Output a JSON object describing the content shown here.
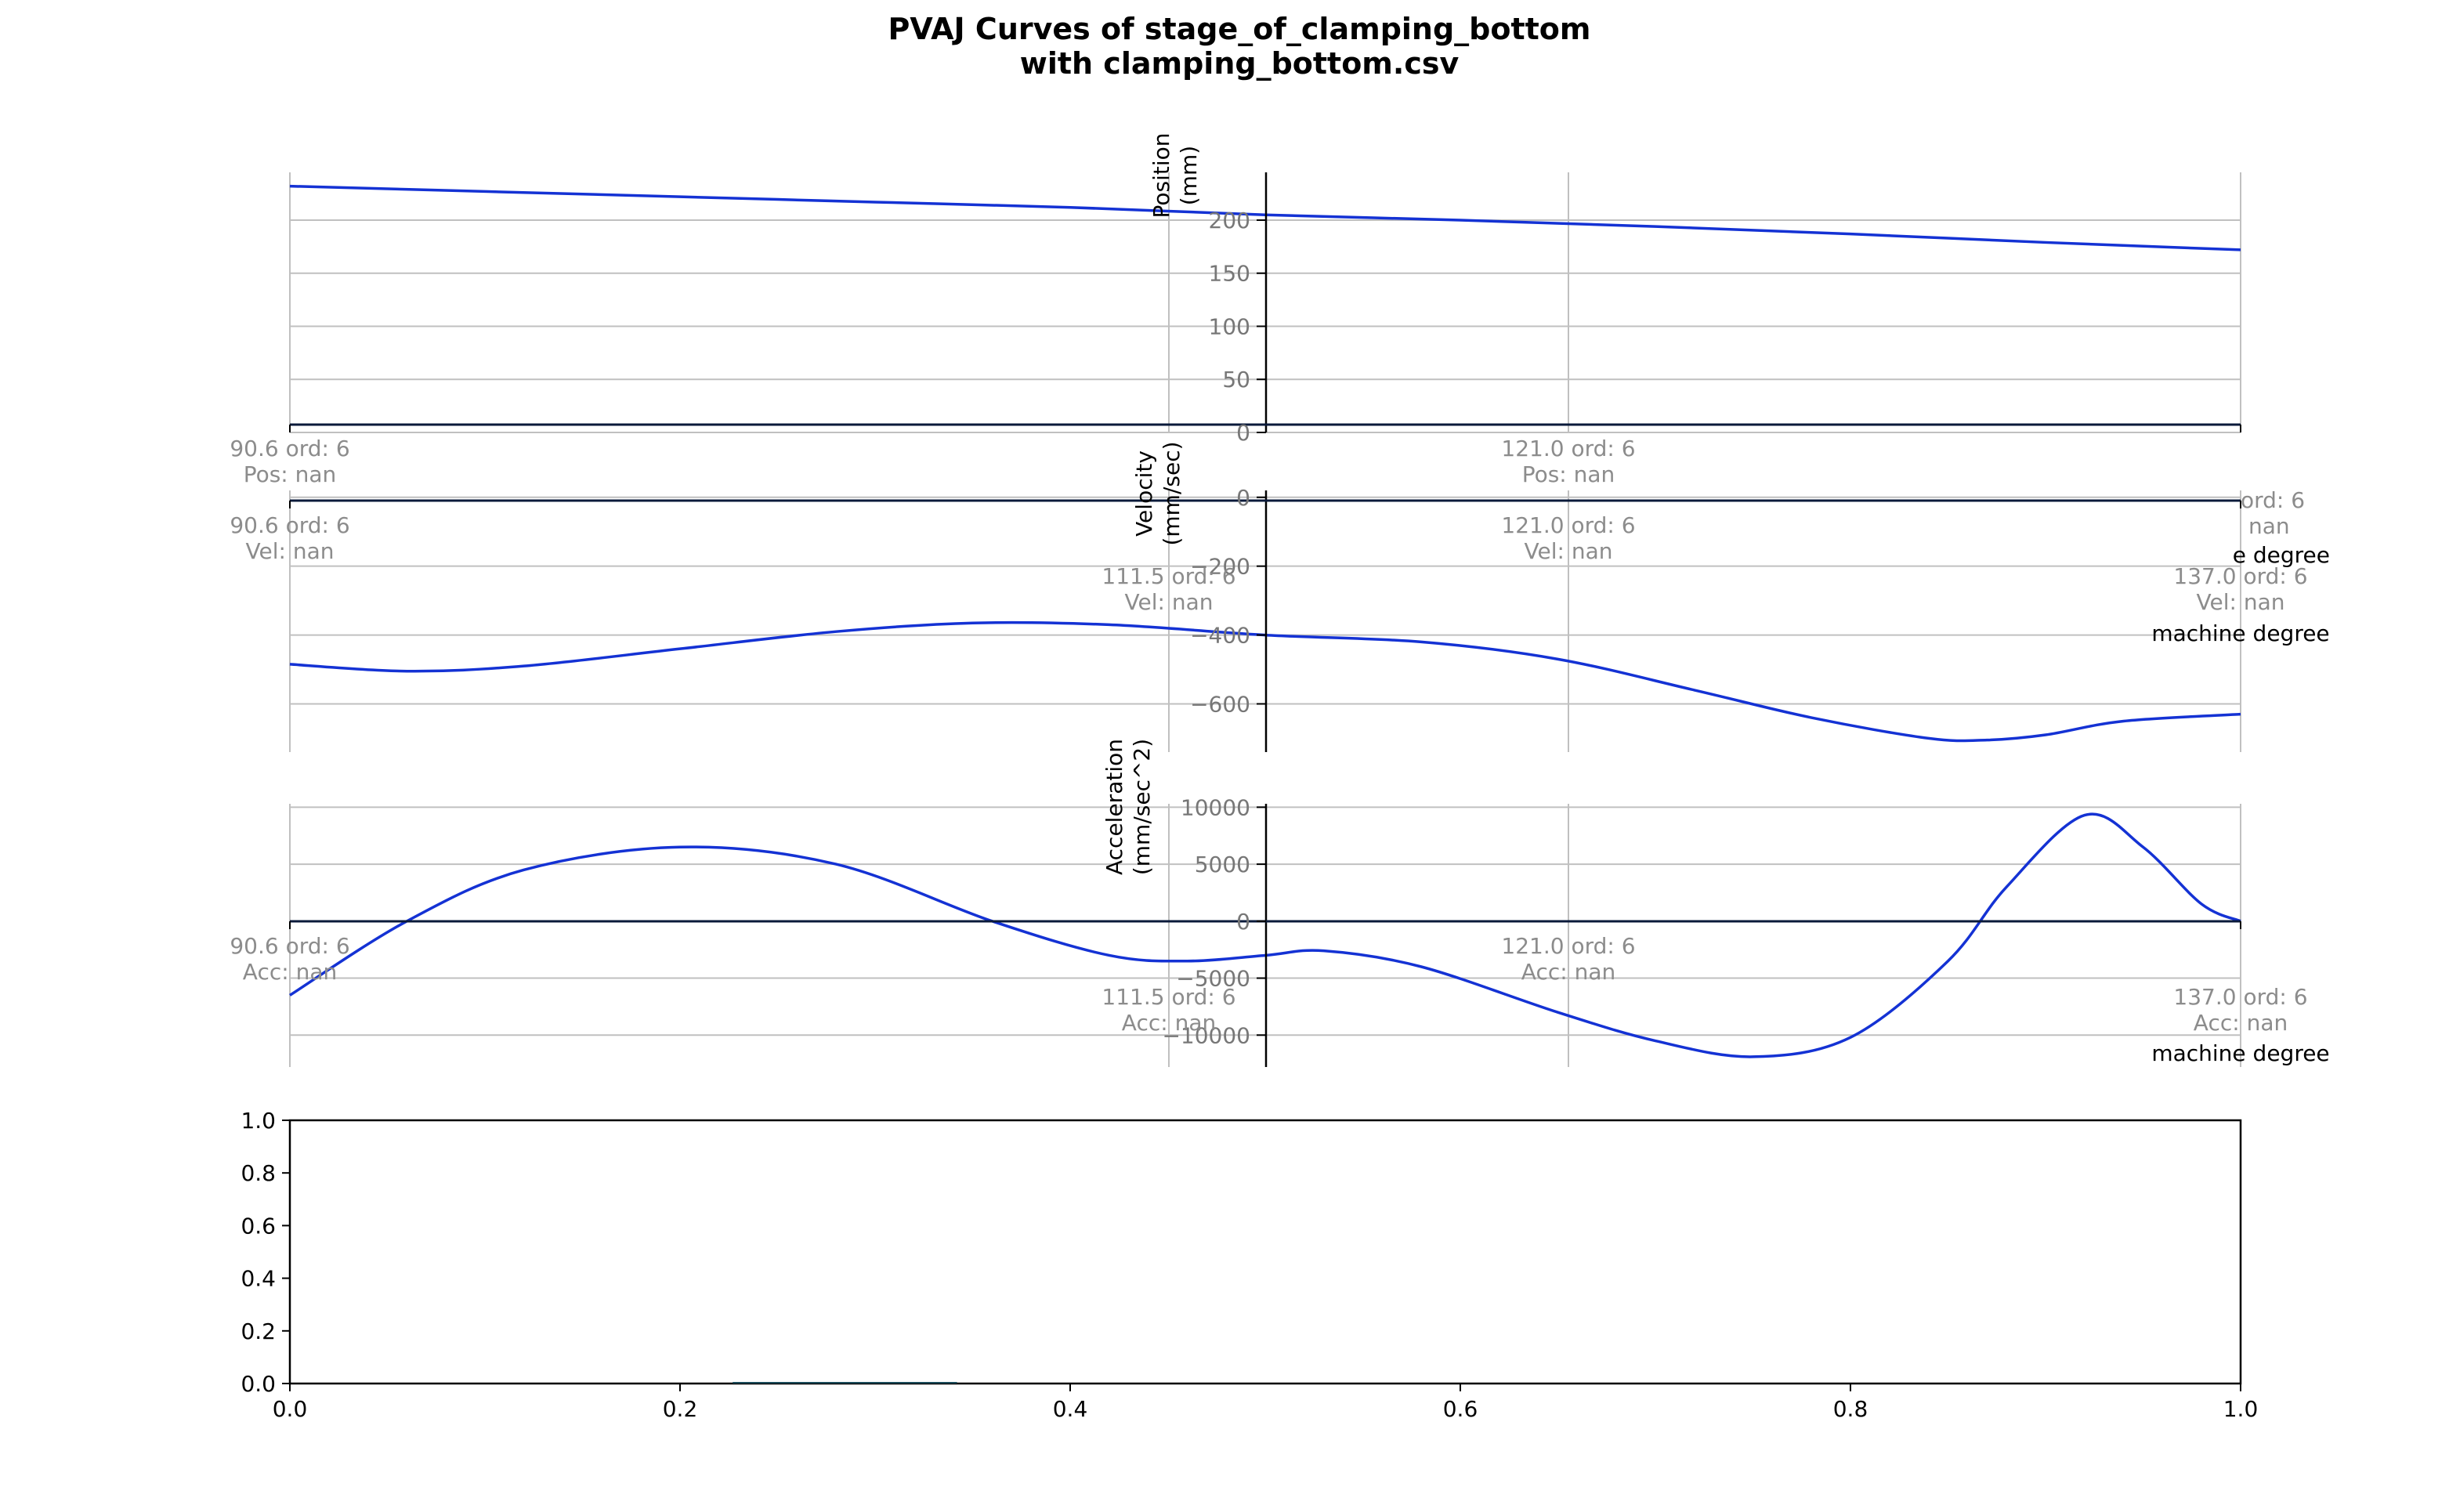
{
  "figure": {
    "title_line1": "PVAJ Curves of stage_of_clamping_bottom",
    "title_line2": "with clamping_bottom.csv"
  },
  "colors": {
    "curve": "#1432d4",
    "grid": "#c0c0c0",
    "axis": "#000000",
    "marker_text": "#8c8c8c"
  },
  "chart_data": [
    {
      "type": "line",
      "ylabel": [
        "Position",
        "(mm)"
      ],
      "ylim": [
        0,
        245
      ],
      "yticks": [
        0,
        50,
        100,
        150,
        200
      ],
      "ytick_labels": [
        "0",
        "50",
        "100",
        "150",
        "200"
      ],
      "grid": true,
      "curve": {
        "x": [
          0,
          0.1,
          0.2,
          0.3,
          0.4,
          0.5,
          0.6,
          0.7,
          0.8,
          0.9,
          1.0
        ],
        "y": [
          232,
          227,
          222,
          217,
          212,
          205,
          200,
          194,
          187,
          179,
          172
        ]
      },
      "markers": [
        {
          "line1": "90.6 ord: 6",
          "line2": "Pos: nan"
        },
        {
          "line1": "121.0 ord: 6",
          "line2": "Pos: nan"
        }
      ]
    },
    {
      "type": "line",
      "ylabel": [
        "Velocity",
        "(mm/sec)"
      ],
      "ylim": [
        -740,
        20
      ],
      "yticks": [
        0,
        -200,
        -400,
        -600
      ],
      "ytick_labels": [
        "0",
        "−200",
        "−400",
        "−600"
      ],
      "grid": true,
      "curve": {
        "x": [
          0,
          0.06,
          0.12,
          0.2,
          0.28,
          0.35,
          0.42,
          0.5,
          0.58,
          0.65,
          0.72,
          0.78,
          0.84,
          0.87,
          0.9,
          0.94,
          1.0
        ],
        "y": [
          -485,
          -505,
          -490,
          -440,
          -390,
          -365,
          -370,
          -400,
          -420,
          -470,
          -560,
          -640,
          -700,
          -705,
          -690,
          -650,
          -630
        ]
      },
      "markers": [
        {
          "line1": "90.6 ord: 6",
          "line2": "Vel: nan"
        },
        {
          "line1": "121.0 ord: 6",
          "line2": "Vel: nan"
        },
        {
          "line1": "111.5 ord: 6",
          "line2": "Vel: nan"
        },
        {
          "line1": "137.0 ord: 6",
          "line2": "Vel: nan"
        },
        {
          "line1": "ord: 6",
          "line2": "nan"
        }
      ],
      "annotations": [
        "machine degree",
        "e degree"
      ]
    },
    {
      "type": "line",
      "ylabel": [
        "Acceleration",
        "(mm/sec^2)"
      ],
      "ylim": [
        -12800,
        10300
      ],
      "yticks": [
        10000,
        5000,
        0,
        -5000,
        -10000
      ],
      "ytick_labels": [
        "10000",
        "5000",
        "0",
        "−5000",
        "−10000"
      ],
      "grid": true,
      "curve": {
        "x": [
          0,
          0.06,
          0.12,
          0.2,
          0.28,
          0.36,
          0.42,
          0.46,
          0.5,
          0.53,
          0.58,
          0.65,
          0.7,
          0.75,
          0.8,
          0.85,
          0.88,
          0.92,
          0.95,
          0.98,
          1.0
        ],
        "y": [
          -6500,
          0,
          4500,
          6500,
          5000,
          0,
          -3000,
          -3500,
          -3000,
          -2600,
          -4000,
          -8000,
          -10500,
          -11900,
          -10200,
          -3500,
          3000,
          9300,
          6500,
          1500,
          0
        ]
      },
      "markers": [
        {
          "line1": "90.6 ord: 6",
          "line2": "Acc: nan"
        },
        {
          "line1": "121.0 ord: 6",
          "line2": "Acc: nan"
        },
        {
          "line1": "111.5 ord: 6",
          "line2": "Acc: nan"
        },
        {
          "line1": "137.0 ord: 6",
          "line2": "Acc: nan"
        }
      ],
      "annotations": [
        "machine degree"
      ]
    },
    {
      "type": "line",
      "xlim": [
        0,
        1
      ],
      "ylim": [
        0,
        1
      ],
      "xticks": [
        0,
        0.2,
        0.4,
        0.6,
        0.8,
        1.0
      ],
      "xtick_labels": [
        "0.0",
        "0.2",
        "0.4",
        "0.6",
        "0.8",
        "1.0"
      ],
      "yticks": [
        0,
        0.2,
        0.4,
        0.6,
        0.8,
        1.0
      ],
      "ytick_labels": [
        "0.0",
        "0.2",
        "0.4",
        "0.6",
        "0.8",
        "1.0"
      ],
      "grid": false,
      "segment": {
        "x": [
          0.227,
          0.342
        ],
        "y": [
          0,
          0
        ]
      }
    }
  ]
}
